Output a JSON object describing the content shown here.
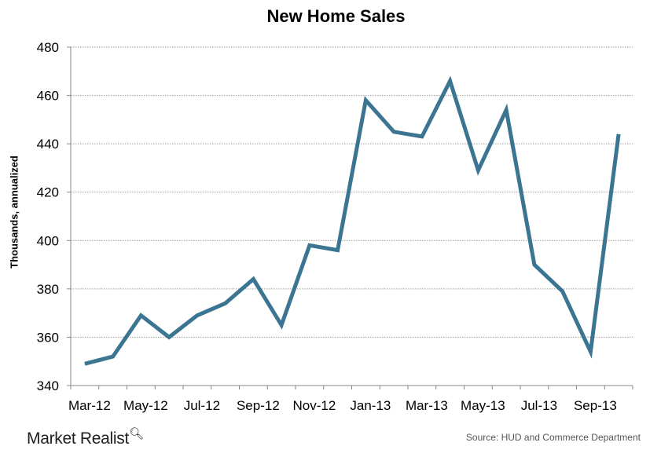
{
  "chart_data": {
    "type": "line",
    "title": "New Home Sales",
    "xlabel": "",
    "ylabel": "Thousands, annualized",
    "ylim": [
      340,
      480
    ],
    "yticks": [
      340,
      360,
      380,
      400,
      420,
      440,
      460,
      480
    ],
    "grid": true,
    "line_color": "#3b7592",
    "x": [
      "Mar-12",
      "Apr-12",
      "May-12",
      "Jun-12",
      "Jul-12",
      "Aug-12",
      "Sep-12",
      "Oct-12",
      "Nov-12",
      "Dec-12",
      "Jan-13",
      "Feb-13",
      "Mar-13",
      "Apr-13",
      "May-13",
      "Jun-13",
      "Jul-13",
      "Aug-13",
      "Sep-13",
      "Oct-13"
    ],
    "xtick_labels": [
      "Mar-12",
      "May-12",
      "Jul-12",
      "Sep-12",
      "Nov-12",
      "Jan-13",
      "Mar-13",
      "May-13",
      "Jul-13",
      "Sep-13"
    ],
    "values": [
      349,
      352,
      369,
      360,
      369,
      374,
      384,
      365,
      398,
      396,
      458,
      445,
      443,
      466,
      429,
      454,
      390,
      379,
      354,
      444
    ]
  },
  "footer": {
    "brand": "Market Realist",
    "source": "Source: HUD and Commerce Department"
  }
}
